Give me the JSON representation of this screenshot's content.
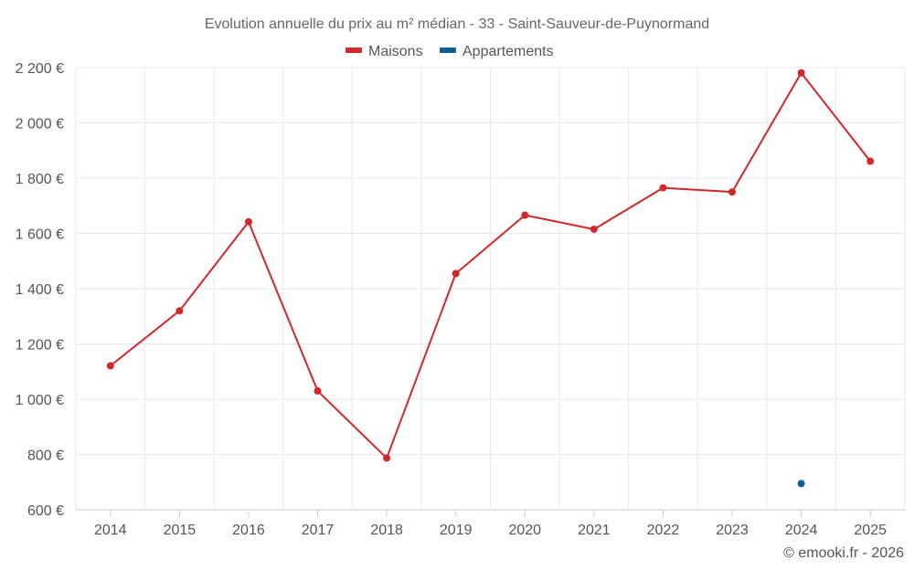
{
  "chart_data": {
    "type": "line",
    "title": "Evolution annuelle du prix au m² médian - 33 - Saint-Sauveur-de-Puynormand",
    "categories": [
      "2014",
      "2015",
      "2016",
      "2017",
      "2018",
      "2019",
      "2020",
      "2021",
      "2022",
      "2023",
      "2024",
      "2025"
    ],
    "series": [
      {
        "name": "Maisons",
        "color": "#d0282b",
        "values": [
          1121,
          1320,
          1642,
          1030,
          787,
          1455,
          1666,
          1615,
          1765,
          1750,
          2181,
          1861
        ]
      },
      {
        "name": "Appartements",
        "color": "#0e5d95",
        "values": [
          null,
          null,
          null,
          null,
          null,
          null,
          null,
          null,
          null,
          null,
          695,
          null
        ]
      }
    ],
    "ylim": [
      600,
      2200
    ],
    "yticks": [
      600,
      800,
      1000,
      1200,
      1400,
      1600,
      1800,
      2000,
      2200
    ],
    "ytick_labels": [
      "600 €",
      "800 €",
      "1 000 €",
      "1 200 €",
      "1 400 €",
      "1 600 €",
      "1 800 €",
      "2 000 €",
      "2 200 €"
    ],
    "xlabel": "",
    "ylabel": "",
    "grid": true,
    "legend_position": "top-center"
  },
  "credit": "© emooki.fr - 2026"
}
